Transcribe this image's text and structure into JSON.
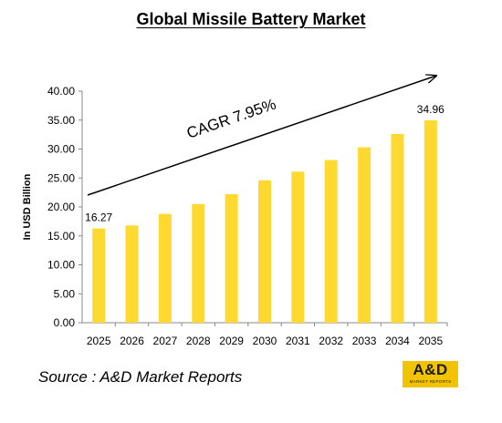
{
  "chart_data": {
    "type": "bar",
    "title": "Global Missile Battery Market",
    "ylabel": "In USD Billion",
    "xlabel": "",
    "categories": [
      "2025",
      "2026",
      "2027",
      "2028",
      "2029",
      "2030",
      "2031",
      "2032",
      "2033",
      "2034",
      "2035"
    ],
    "values": [
      16.27,
      16.8,
      18.8,
      20.5,
      22.2,
      24.6,
      26.1,
      28.1,
      30.3,
      32.6,
      34.96
    ],
    "ylim": [
      0,
      40
    ],
    "yticks": [
      "0.00",
      "5.00",
      "10.00",
      "15.00",
      "20.00",
      "25.00",
      "30.00",
      "35.00",
      "40.00"
    ],
    "data_labels": [
      {
        "category": "2025",
        "text": "16.27"
      },
      {
        "category": "2035",
        "text": "34.96"
      }
    ],
    "annotation": "CAGR 7.95%",
    "bar_color": "#ffd92f",
    "grid": false,
    "legend": "none"
  },
  "footer": {
    "source": "Source : A&D Market Reports",
    "logo_text": "A&D",
    "logo_subtext": "MARKET REPORTS"
  }
}
